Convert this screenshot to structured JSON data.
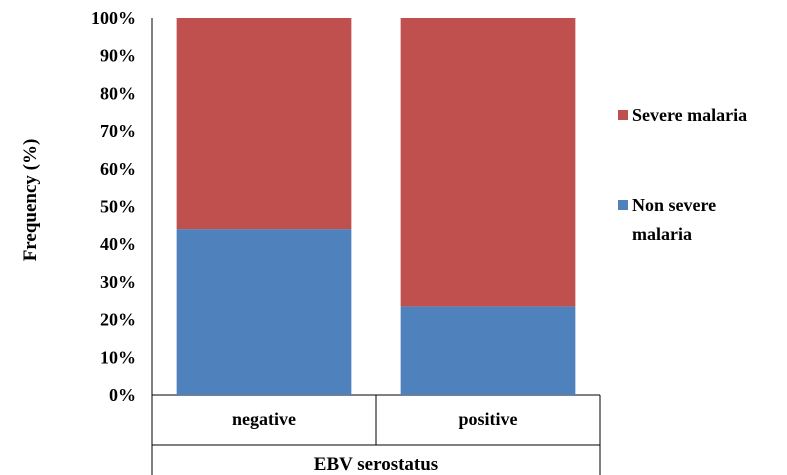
{
  "chart_data": {
    "type": "bar",
    "stacked": true,
    "categories": [
      "negative",
      "positive"
    ],
    "series": [
      {
        "name": "Non severe malaria",
        "values": [
          44,
          23.5
        ],
        "color": "#4F81BD"
      },
      {
        "name": "Severe malaria",
        "values": [
          56,
          76.5
        ],
        "color": "#C0504D"
      }
    ],
    "legend_labels": [
      "Severe malaria",
      "Non severe",
      "malaria"
    ],
    "xlabel": "EBV serostatus",
    "ylabel": "Frequency (%)",
    "ylim": [
      0,
      100
    ],
    "yticks": [
      "0%",
      "10%",
      "20%",
      "30%",
      "40%",
      "50%",
      "60%",
      "70%",
      "80%",
      "90%",
      "100%"
    ],
    "grid": false,
    "legend_position": "right"
  }
}
